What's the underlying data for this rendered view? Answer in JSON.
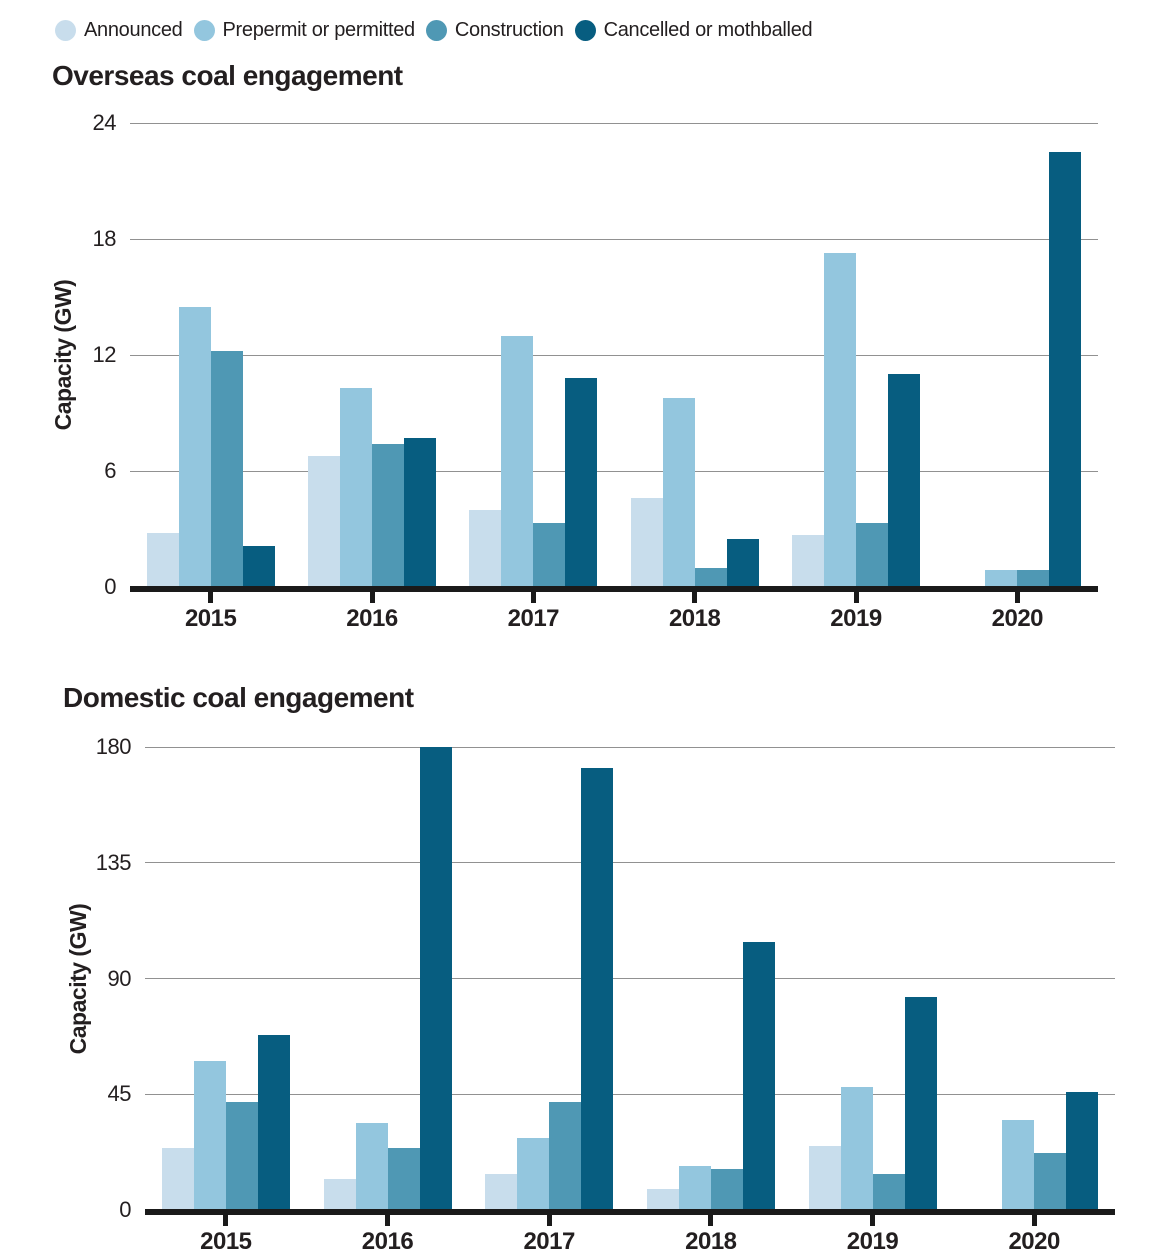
{
  "legend": {
    "items": [
      {
        "label": "Announced",
        "color": "#c8ddec"
      },
      {
        "label": "Prepermit or permitted",
        "color": "#93c6de"
      },
      {
        "label": "Construction",
        "color": "#4f98b4"
      },
      {
        "label": "Cancelled or mothballed",
        "color": "#075d80"
      }
    ]
  },
  "chart_data": [
    {
      "type": "bar",
      "title": "Overseas coal engagement",
      "ylabel": "Capacity (GW)",
      "categories": [
        "2015",
        "2016",
        "2017",
        "2018",
        "2019",
        "2020"
      ],
      "series": [
        {
          "name": "Announced",
          "color": "#c8ddec",
          "values": [
            2.8,
            6.8,
            4.0,
            4.6,
            2.7,
            0
          ]
        },
        {
          "name": "Prepermit or permitted",
          "color": "#93c6de",
          "values": [
            14.5,
            10.3,
            13.0,
            9.8,
            17.3,
            0.9
          ]
        },
        {
          "name": "Construction",
          "color": "#4f98b4",
          "values": [
            12.2,
            7.4,
            3.3,
            1.0,
            3.3,
            0.9
          ]
        },
        {
          "name": "Cancelled or mothballed",
          "color": "#075d80",
          "values": [
            2.1,
            7.7,
            10.8,
            2.5,
            11.0,
            22.5
          ]
        }
      ],
      "ylim": [
        0,
        24
      ],
      "yticks": [
        0,
        6,
        12,
        18,
        24
      ],
      "grid": true,
      "legend_position": "top"
    },
    {
      "type": "bar",
      "title": "Domestic coal engagement",
      "ylabel": "Capacity (GW)",
      "categories": [
        "2015",
        "2016",
        "2017",
        "2018",
        "2019",
        "2020"
      ],
      "series": [
        {
          "name": "Announced",
          "color": "#c8ddec",
          "values": [
            24,
            12,
            14,
            8,
            25,
            0
          ]
        },
        {
          "name": "Prepermit or permitted",
          "color": "#93c6de",
          "values": [
            58,
            34,
            28,
            17,
            48,
            35
          ]
        },
        {
          "name": "Construction",
          "color": "#4f98b4",
          "values": [
            42,
            24,
            42,
            16,
            14,
            22
          ]
        },
        {
          "name": "Cancelled or mothballed",
          "color": "#075d80",
          "values": [
            68,
            180,
            172,
            104,
            83,
            46
          ]
        }
      ],
      "ylim": [
        0,
        180
      ],
      "yticks": [
        0,
        45,
        90,
        135,
        180
      ],
      "grid": true,
      "legend_position": "top"
    }
  ]
}
